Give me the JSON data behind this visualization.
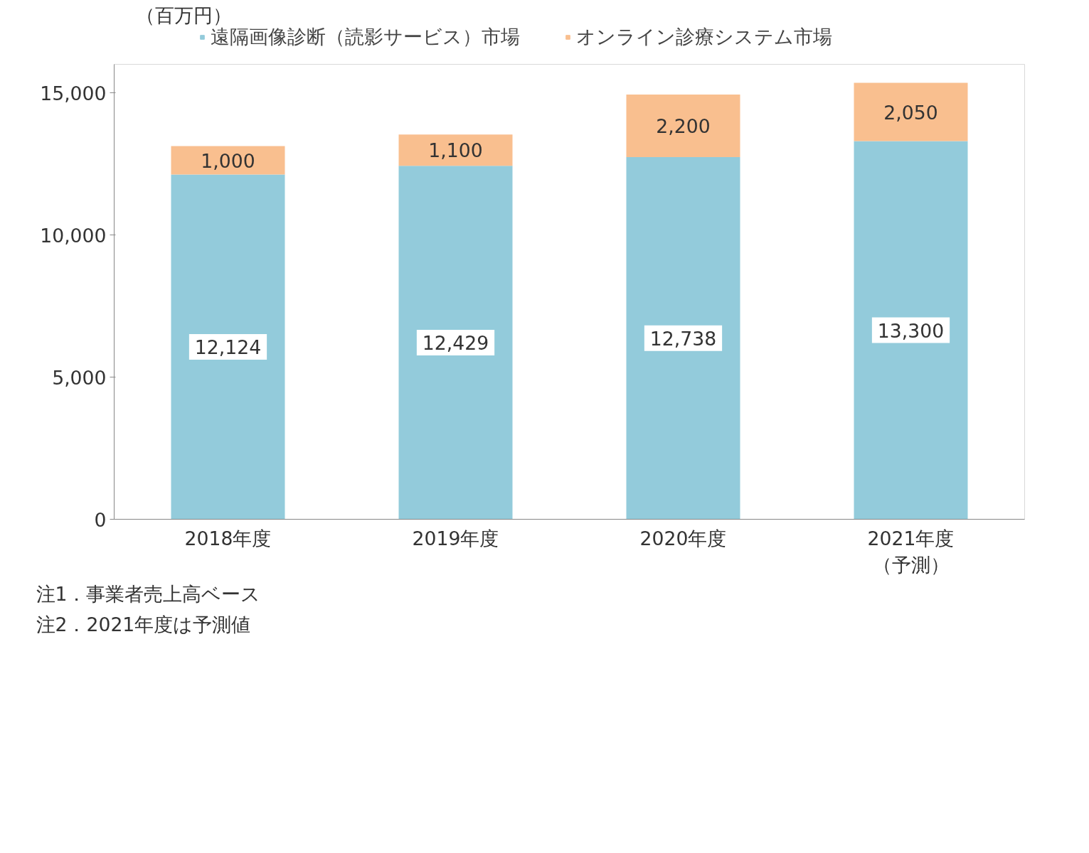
{
  "chart_data": {
    "type": "bar",
    "stacked": true,
    "ylabel": "（百万円）",
    "categories": [
      "2018年度",
      "2019年度",
      "2020年度",
      "2021年度（予測）"
    ],
    "series": [
      {
        "name": "遠隔画像診断（読影サービス）市場",
        "color": "#93cbdb",
        "values": [
          12124,
          12429,
          12738,
          13300
        ],
        "value_labels": [
          "12,124",
          "12,429",
          "12,738",
          "13,300"
        ]
      },
      {
        "name": "オンライン診療システム市場",
        "color": "#f9bf8f",
        "values": [
          1000,
          1100,
          2200,
          2050
        ],
        "value_labels": [
          "1,000",
          "1,100",
          "2,200",
          "2,050"
        ]
      }
    ],
    "ylim": [
      0,
      16000
    ],
    "yticks": [
      0,
      {
        "value": 5000,
        "label": "5,000"
      },
      {
        "value": 10000,
        "label": "10,000"
      },
      {
        "value": 15000,
        "label": "15,000"
      }
    ],
    "grid": false,
    "legend": "top",
    "annotations": [
      "注1．事業者売上高ベース",
      "注2．2021年度は予測値"
    ]
  }
}
